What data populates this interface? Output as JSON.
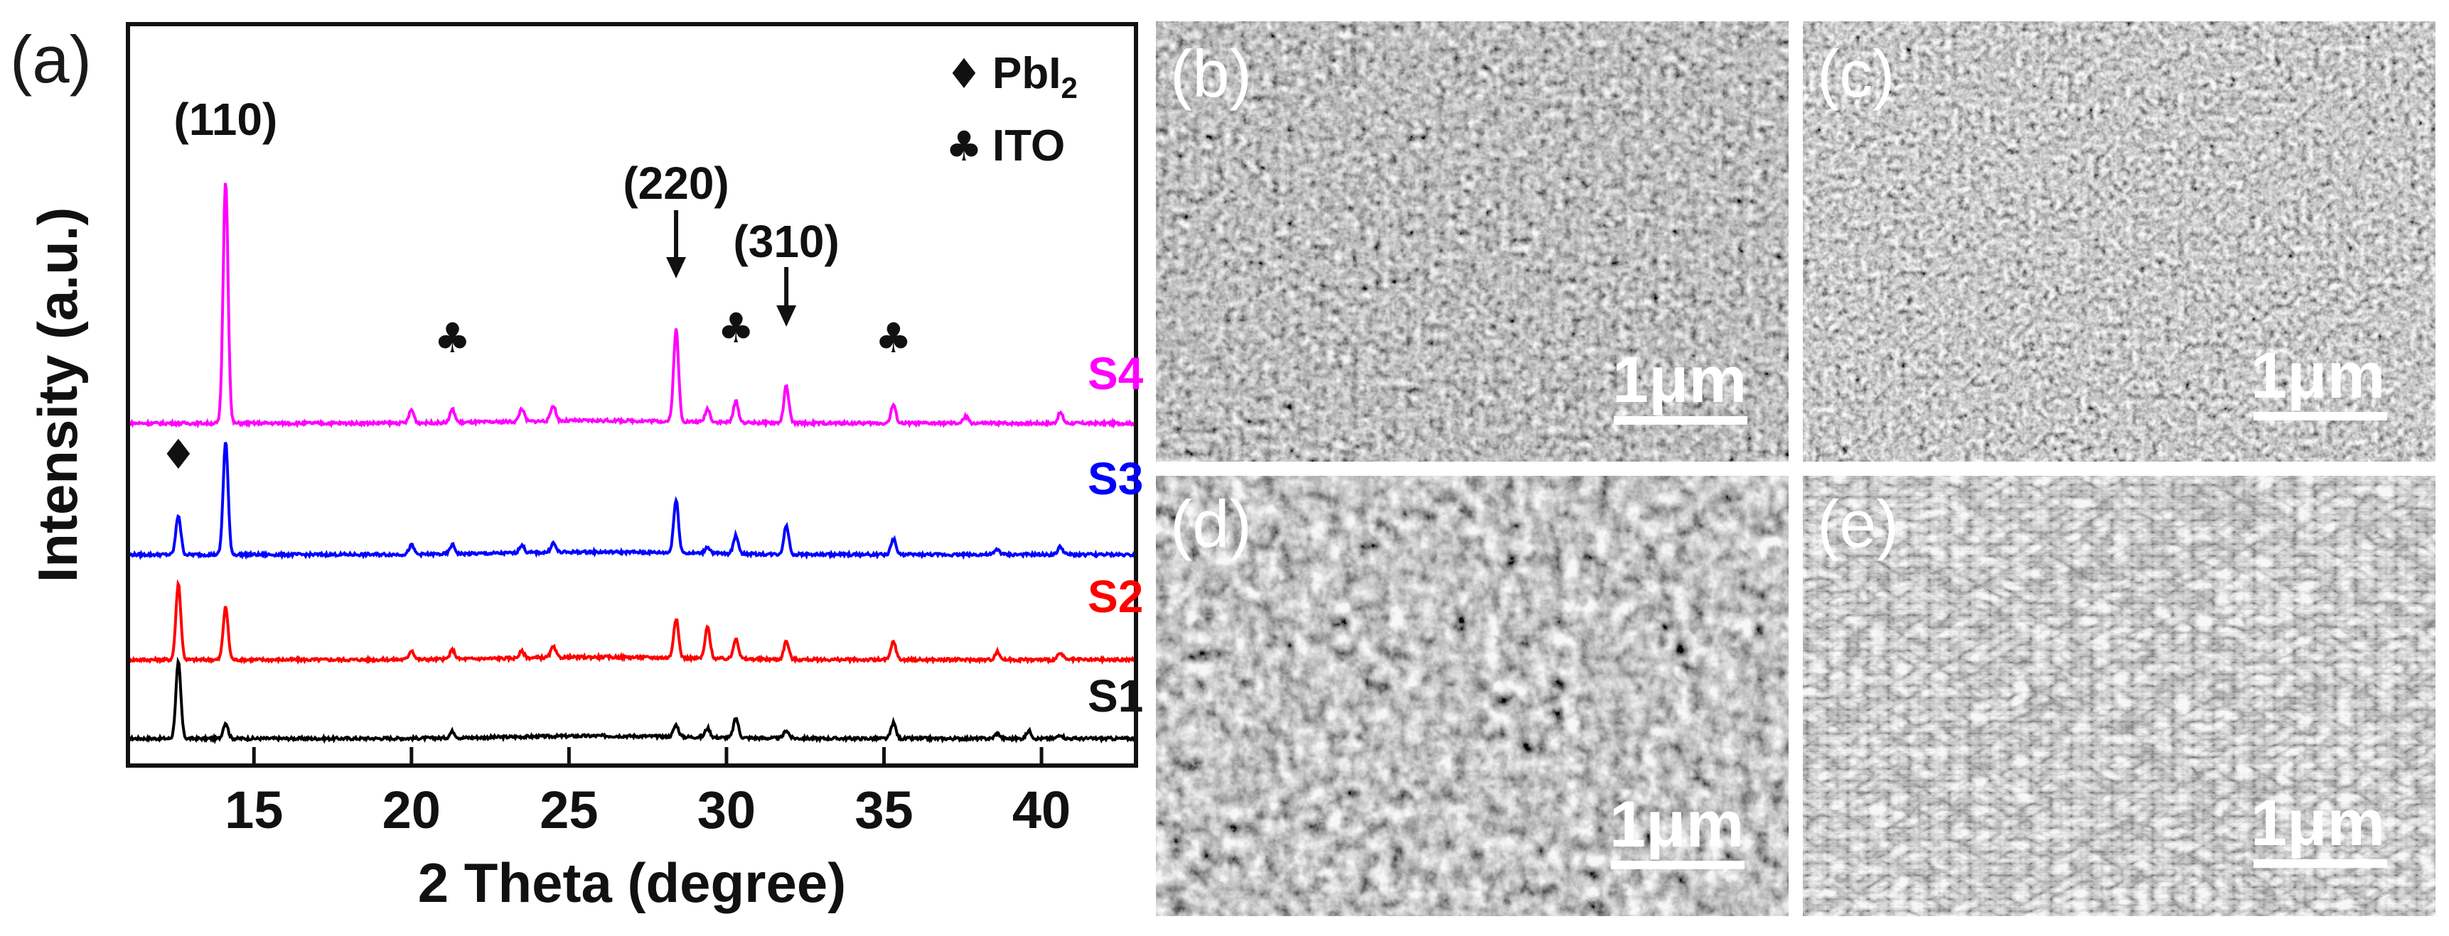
{
  "chart_data": {
    "type": "line",
    "panel_label": "(a)",
    "xlabel": "2 Theta (degree)",
    "ylabel": "Intensity (a.u.)",
    "xlim": [
      11,
      43
    ],
    "xticks": [
      "15",
      "20",
      "25",
      "30",
      "35",
      "40"
    ],
    "legend": [
      {
        "symbol": "♦",
        "label": "PbI",
        "subscript": "2"
      },
      {
        "symbol": "♣",
        "label": "ITO"
      }
    ],
    "annotations": {
      "peak_110": "(110)",
      "peak_220": "(220)",
      "peak_310": "(310)",
      "pbi2_marker": "♦",
      "ito_marker": "♣"
    },
    "series": [
      {
        "name": "S1",
        "color": "#000000",
        "baseline": 0.0,
        "peaks": [
          [
            12.6,
            0.58
          ],
          [
            14.1,
            0.12
          ],
          [
            21.3,
            0.05
          ],
          [
            28.4,
            0.09
          ],
          [
            29.4,
            0.07
          ],
          [
            30.3,
            0.15
          ],
          [
            31.9,
            0.06
          ],
          [
            35.3,
            0.12
          ],
          [
            38.6,
            0.04
          ],
          [
            39.6,
            0.06
          ],
          [
            40.6,
            0.03
          ]
        ]
      },
      {
        "name": "S2",
        "color": "#ff0000",
        "baseline": 0.6,
        "peaks": [
          [
            12.6,
            0.58
          ],
          [
            14.1,
            0.4
          ],
          [
            20.0,
            0.07
          ],
          [
            21.3,
            0.07
          ],
          [
            23.5,
            0.05
          ],
          [
            24.5,
            0.08
          ],
          [
            28.4,
            0.3
          ],
          [
            29.4,
            0.24
          ],
          [
            30.3,
            0.16
          ],
          [
            31.9,
            0.14
          ],
          [
            35.3,
            0.14
          ],
          [
            38.6,
            0.06
          ],
          [
            40.6,
            0.05
          ]
        ]
      },
      {
        "name": "S3",
        "color": "#0000ff",
        "baseline": 1.4,
        "peaks": [
          [
            12.6,
            0.3
          ],
          [
            14.1,
            0.86
          ],
          [
            20.0,
            0.07
          ],
          [
            21.3,
            0.07
          ],
          [
            23.5,
            0.06
          ],
          [
            24.5,
            0.07
          ],
          [
            28.4,
            0.4
          ],
          [
            29.4,
            0.05
          ],
          [
            30.3,
            0.14
          ],
          [
            31.9,
            0.22
          ],
          [
            35.3,
            0.12
          ],
          [
            38.6,
            0.04
          ],
          [
            40.6,
            0.06
          ]
        ]
      },
      {
        "name": "S4",
        "color": "#ff00ff",
        "baseline": 2.4,
        "peaks": [
          [
            14.1,
            1.85
          ],
          [
            20.0,
            0.1
          ],
          [
            21.3,
            0.1
          ],
          [
            23.5,
            0.1
          ],
          [
            24.5,
            0.12
          ],
          [
            28.4,
            0.7
          ],
          [
            29.4,
            0.1
          ],
          [
            30.3,
            0.16
          ],
          [
            31.9,
            0.28
          ],
          [
            35.3,
            0.14
          ],
          [
            37.6,
            0.05
          ],
          [
            40.6,
            0.08
          ]
        ]
      }
    ]
  },
  "sem_panels": [
    {
      "label": "(b)",
      "scale": "1μm"
    },
    {
      "label": "(c)",
      "scale": "1μm"
    },
    {
      "label": "(d)",
      "scale": "1μm"
    },
    {
      "label": "(e)",
      "scale": "1μm"
    }
  ]
}
